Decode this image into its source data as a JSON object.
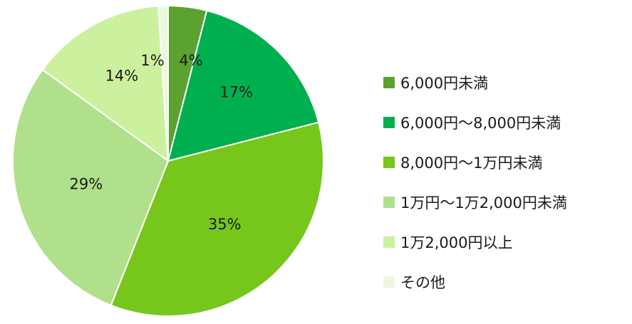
{
  "chart_data": {
    "type": "pie",
    "categories": [
      "6,000円未満",
      "6,000円～8,000円未満",
      "8,000円～1万円未満",
      "1万円～1万2,000円未満",
      "1万2,000円以上",
      "その他"
    ],
    "values": [
      4,
      17,
      35,
      29,
      14,
      1
    ],
    "value_labels": [
      "4%",
      "17%",
      "35%",
      "29%",
      "14%",
      "1%"
    ],
    "colors": [
      "#5ba231",
      "#00b050",
      "#76c61c",
      "#b0e08b",
      "#ccf19e",
      "#ecf8de"
    ],
    "legend_position": "right",
    "start_angle_deg": 0,
    "direction": "clockwise"
  }
}
